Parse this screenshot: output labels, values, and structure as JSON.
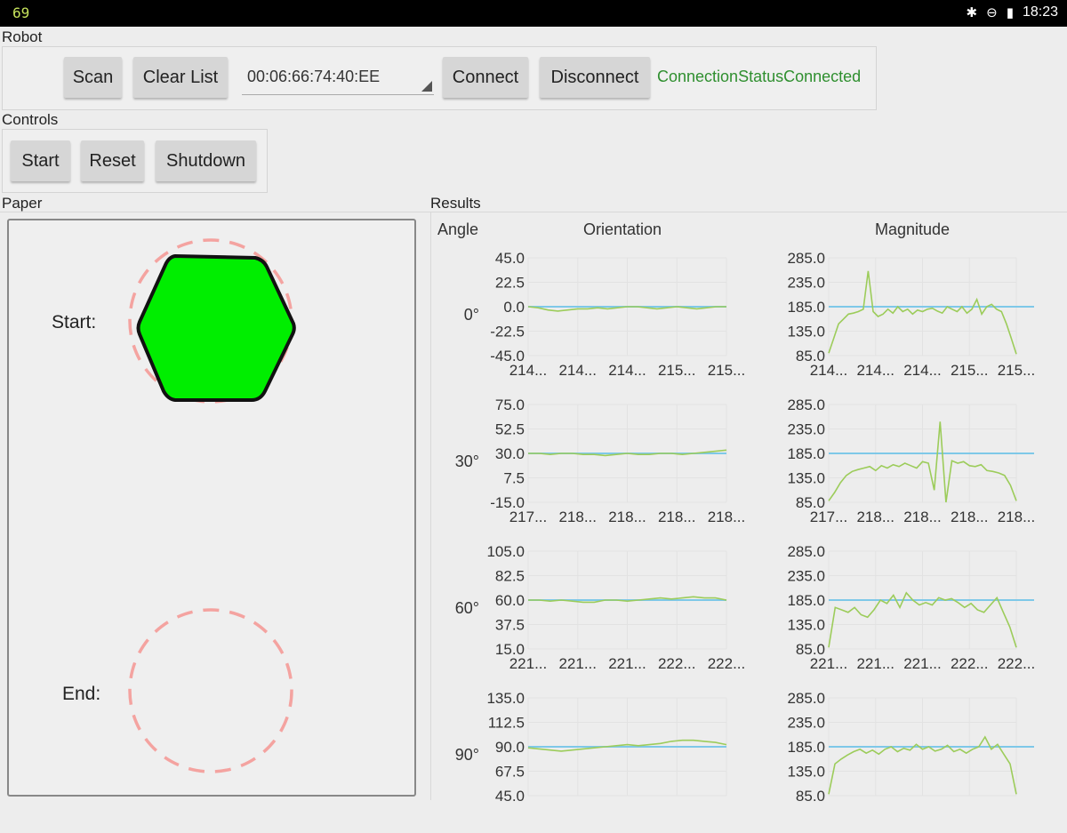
{
  "status_bar": {
    "left_text": "69",
    "time": "18:23",
    "icons": [
      "bluetooth-icon",
      "do-not-disturb-icon",
      "battery-icon"
    ]
  },
  "robot": {
    "section_label": "Robot",
    "scan_label": "Scan",
    "clear_label": "Clear List",
    "device_value": "00:06:66:74:40:EE",
    "connect_label": "Connect",
    "disconnect_label": "Disconnect",
    "connection_status": "ConnectionStatusConnected"
  },
  "controls": {
    "section_label": "Controls",
    "start_label": "Start",
    "reset_label": "Reset",
    "shutdown_label": "Shutdown"
  },
  "paper": {
    "section_label": "Paper",
    "start_label": "Start:",
    "end_label": "End:"
  },
  "results": {
    "section_label": "Results",
    "angle_header": "Angle",
    "orientation_header": "Orientation",
    "magnitude_header": "Magnitude",
    "rows": [
      {
        "angle": "0°"
      },
      {
        "angle": "30°"
      },
      {
        "angle": "60°"
      },
      {
        "angle": "90°"
      }
    ]
  },
  "colors": {
    "accent_green": "#2f8f2f",
    "hexagon_fill": "#00ee00",
    "dashed_circle": "#f4a3a0",
    "reference_line": "#7ec8e8",
    "data_line": "#9ccc5a"
  },
  "chart_data": [
    {
      "type": "line",
      "title": "Orientation 0°",
      "ylim": [
        -45,
        45
      ],
      "yticks": [
        "45.0",
        "22.5",
        "0.0",
        "-22.5",
        "-45.0"
      ],
      "xticks": [
        "214...",
        "214...",
        "214...",
        "215...",
        "215..."
      ],
      "reference": 0,
      "values": [
        0,
        -1,
        -3,
        -4,
        -3,
        -2,
        -2,
        -1,
        -2,
        -1,
        0,
        0,
        -1,
        -2,
        -1,
        0,
        -1,
        -2,
        -1,
        0,
        0
      ]
    },
    {
      "type": "line",
      "title": "Magnitude 0°",
      "ylim": [
        85,
        285
      ],
      "yticks": [
        "285.0",
        "235.0",
        "185.0",
        "135.0",
        "85.0"
      ],
      "xticks": [
        "214...",
        "214...",
        "214...",
        "215...",
        "215..."
      ],
      "reference": 185,
      "values": [
        90,
        120,
        150,
        160,
        170,
        172,
        175,
        180,
        258,
        175,
        165,
        170,
        180,
        172,
        185,
        175,
        180,
        170,
        178,
        175,
        180,
        182,
        176,
        172,
        185,
        180,
        175,
        185,
        172,
        180,
        200,
        170,
        185,
        190,
        180,
        175,
        150,
        120,
        88
      ]
    },
    {
      "type": "line",
      "title": "Orientation 30°",
      "ylim": [
        -15,
        75
      ],
      "yticks": [
        "75.0",
        "52.5",
        "30.0",
        "7.5",
        "-15.0"
      ],
      "xticks": [
        "217...",
        "218...",
        "218...",
        "218...",
        "218..."
      ],
      "reference": 30,
      "values": [
        30,
        30,
        29,
        30,
        30,
        29,
        29,
        28,
        29,
        30,
        29,
        29,
        30,
        30,
        29,
        30,
        31,
        32,
        33
      ]
    },
    {
      "type": "line",
      "title": "Magnitude 30°",
      "ylim": [
        85,
        285
      ],
      "yticks": [
        "285.0",
        "235.0",
        "185.0",
        "135.0",
        "85.0"
      ],
      "xticks": [
        "217...",
        "218...",
        "218...",
        "218...",
        "218..."
      ],
      "reference": 185,
      "values": [
        88,
        105,
        125,
        140,
        148,
        152,
        155,
        158,
        150,
        160,
        155,
        162,
        158,
        165,
        160,
        155,
        168,
        165,
        110,
        250,
        85,
        170,
        165,
        168,
        160,
        158,
        162,
        150,
        148,
        145,
        140,
        120,
        88
      ]
    },
    {
      "type": "line",
      "title": "Orientation 60°",
      "ylim": [
        15,
        105
      ],
      "yticks": [
        "105.0",
        "82.5",
        "60.0",
        "37.5",
        "15.0"
      ],
      "xticks": [
        "221...",
        "221...",
        "221...",
        "222...",
        "222..."
      ],
      "reference": 60,
      "values": [
        60,
        60,
        59,
        60,
        59,
        58,
        58,
        60,
        60,
        59,
        60,
        61,
        62,
        61,
        62,
        63,
        62,
        62,
        60
      ]
    },
    {
      "type": "line",
      "title": "Magnitude 60°",
      "ylim": [
        85,
        285
      ],
      "yticks": [
        "285.0",
        "235.0",
        "185.0",
        "135.0",
        "85.0"
      ],
      "xticks": [
        "221...",
        "221...",
        "221...",
        "222...",
        "222..."
      ],
      "reference": 185,
      "values": [
        88,
        170,
        165,
        160,
        170,
        155,
        150,
        165,
        185,
        178,
        195,
        170,
        200,
        185,
        175,
        180,
        175,
        190,
        185,
        188,
        180,
        170,
        178,
        165,
        160,
        175,
        190,
        160,
        130,
        88
      ]
    },
    {
      "type": "line",
      "title": "Orientation 90°",
      "ylim": [
        45,
        135
      ],
      "yticks": [
        "135.0",
        "112.5",
        "90.0",
        "67.5",
        "45.0"
      ],
      "xticks": [],
      "reference": 90,
      "values": [
        89,
        88,
        87,
        86,
        87,
        88,
        89,
        90,
        91,
        92,
        91,
        92,
        93,
        95,
        96,
        96,
        95,
        94,
        92
      ]
    },
    {
      "type": "line",
      "title": "Magnitude 90°",
      "ylim": [
        85,
        285
      ],
      "yticks": [
        "285.0",
        "235.0",
        "185.0",
        "135.0",
        "85.0"
      ],
      "xticks": [],
      "reference": 185,
      "values": [
        88,
        150,
        160,
        168,
        175,
        180,
        172,
        178,
        170,
        180,
        185,
        175,
        182,
        178,
        190,
        180,
        185,
        176,
        180,
        188,
        175,
        180,
        172,
        180,
        185,
        205,
        180,
        190,
        170,
        150,
        88
      ]
    }
  ]
}
